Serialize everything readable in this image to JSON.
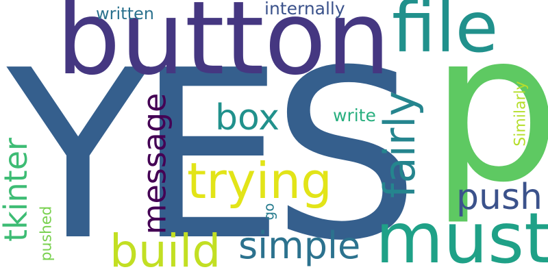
{
  "words": [
    {
      "text": "YES",
      "color": "#355f8d",
      "rotated": false
    },
    {
      "text": "p",
      "color": "#5ec962",
      "rotated": false
    },
    {
      "text": "button",
      "color": "#453781",
      "rotated": false
    },
    {
      "text": "file",
      "color": "#21918c",
      "rotated": false
    },
    {
      "text": "must",
      "color": "#1fa187",
      "rotated": false
    },
    {
      "text": "trying",
      "color": "#e2e418",
      "rotated": false
    },
    {
      "text": "build",
      "color": "#c2df23",
      "rotated": false
    },
    {
      "text": "simple",
      "color": "#2c728e",
      "rotated": false
    },
    {
      "text": "push",
      "color": "#3b528b",
      "rotated": false
    },
    {
      "text": "box",
      "color": "#21918c",
      "rotated": false
    },
    {
      "text": "fairly",
      "color": "#25858e",
      "rotated": true
    },
    {
      "text": "message",
      "color": "#440154",
      "rotated": true
    },
    {
      "text": "tkinter",
      "color": "#3dbc74",
      "rotated": true
    },
    {
      "text": "internally",
      "color": "#3b528b",
      "rotated": false
    },
    {
      "text": "written",
      "color": "#2c728e",
      "rotated": false
    },
    {
      "text": "write",
      "color": "#29af7f",
      "rotated": false
    },
    {
      "text": "Similarly",
      "color": "#b5de2b",
      "rotated": true
    },
    {
      "text": "pushed",
      "color": "#7ad151",
      "rotated": true
    },
    {
      "text": "go",
      "color": "#287c8e",
      "rotated": true
    }
  ]
}
